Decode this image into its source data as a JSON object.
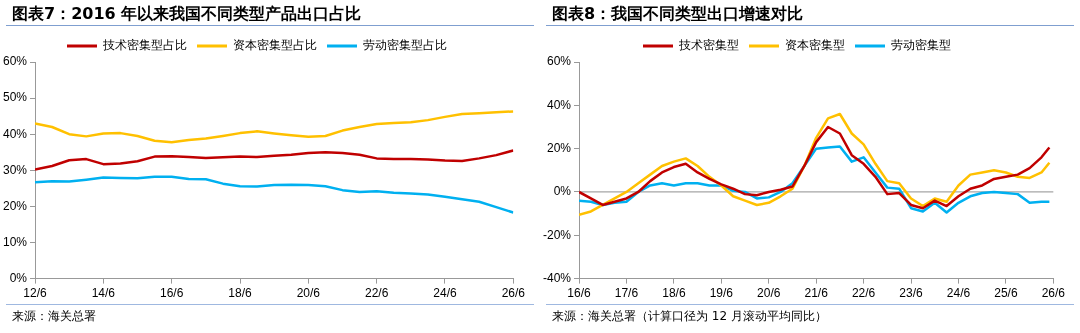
{
  "chart_data": [
    {
      "type": "line",
      "title": "图表7：2016 年以来我国不同类型产品出口占比",
      "annotations": [
        "来源：海关总署"
      ],
      "x": [
        "2012-06",
        "2012-12",
        "2013-06",
        "2013-12",
        "2014-06",
        "2014-12",
        "2015-06",
        "2015-12",
        "2016-06",
        "2016-12",
        "2017-06",
        "2017-12",
        "2018-06",
        "2018-12",
        "2019-06",
        "2019-12",
        "2020-06",
        "2020-12",
        "2021-06",
        "2021-12",
        "2022-06",
        "2022-12",
        "2023-06",
        "2023-12",
        "2024-06",
        "2024-12",
        "2025-06",
        "2025-12",
        "2026-06"
      ],
      "series": [
        {
          "name": "技术密集型占比",
          "color": "#c00000",
          "values": [
            30.2,
            31.2,
            32.8,
            33.1,
            31.7,
            31.9,
            32.5,
            33.8,
            33.9,
            33.7,
            33.4,
            33.6,
            33.8,
            33.7,
            34,
            34.3,
            34.8,
            35,
            34.8,
            34.3,
            33.3,
            33.1,
            33.1,
            33,
            32.7,
            32.6,
            33.3,
            34.2,
            35.5
          ]
        },
        {
          "name": "资本密集型占比",
          "color": "#ffc000",
          "values": [
            43,
            42,
            40,
            39.4,
            40.2,
            40.3,
            39.5,
            38.2,
            37.8,
            38.4,
            38.8,
            39.5,
            40.3,
            40.8,
            40.2,
            39.7,
            39.3,
            39.5,
            41,
            42,
            42.8,
            43.1,
            43.3,
            43.9,
            44.8,
            45.6,
            45.8,
            46.1,
            46.3
          ]
        },
        {
          "name": "劳动密集型占比",
          "color": "#00b0f0",
          "values": [
            26.7,
            27,
            26.9,
            27.4,
            28,
            27.9,
            27.8,
            28.2,
            28.2,
            27.6,
            27.5,
            26.3,
            25.6,
            25.5,
            25.9,
            26,
            25.9,
            25.6,
            24.5,
            24,
            24.2,
            23.8,
            23.6,
            23.3,
            22.7,
            22,
            21.3,
            19.8,
            18.3
          ]
        }
      ],
      "xlim": [
        "2012-06",
        "2026-06"
      ],
      "xticks": [
        {
          "value": "2012-06",
          "label": "12/6"
        },
        {
          "value": "2014-06",
          "label": "14/6"
        },
        {
          "value": "2016-06",
          "label": "16/6"
        },
        {
          "value": "2018-06",
          "label": "18/6"
        },
        {
          "value": "2020-06",
          "label": "20/6"
        },
        {
          "value": "2022-06",
          "label": "22/6"
        },
        {
          "value": "2024-06",
          "label": "24/6"
        },
        {
          "value": "2026-06",
          "label": "26/6"
        }
      ],
      "ylim": [
        0,
        60
      ],
      "yticks": [
        {
          "value": 0,
          "label": "0%"
        },
        {
          "value": 10,
          "label": "10%"
        },
        {
          "value": 20,
          "label": "20%"
        },
        {
          "value": 30,
          "label": "30%"
        },
        {
          "value": 40,
          "label": "40%"
        },
        {
          "value": 50,
          "label": "50%"
        },
        {
          "value": 60,
          "label": "60%"
        }
      ],
      "grid": false,
      "legend": "top",
      "marker": "none",
      "line_style": "solid"
    },
    {
      "type": "line",
      "title": "图表8：我国不同类型出口增速对比",
      "annotations": [
        "来源：海关总署（计算口径为 12 月滚动平均同比）"
      ],
      "x": [
        "2016-06",
        "2016-09",
        "2016-12",
        "2017-03",
        "2017-06",
        "2017-09",
        "2017-12",
        "2018-03",
        "2018-06",
        "2018-09",
        "2018-12",
        "2019-03",
        "2019-06",
        "2019-09",
        "2019-12",
        "2020-03",
        "2020-06",
        "2020-09",
        "2020-12",
        "2021-03",
        "2021-06",
        "2021-09",
        "2021-12",
        "2022-03",
        "2022-06",
        "2022-09",
        "2022-12",
        "2023-03",
        "2023-06",
        "2023-09",
        "2023-12",
        "2024-03",
        "2024-06",
        "2024-09",
        "2024-12",
        "2025-03",
        "2025-06",
        "2025-09",
        "2025-12",
        "2026-03",
        "2026-05"
      ],
      "series": [
        {
          "name": "技术密集型",
          "color": "#c00000",
          "values": [
            0,
            -3,
            -6,
            -4.5,
            -3,
            0,
            5,
            9,
            11.5,
            13,
            9,
            6,
            3.5,
            1.5,
            -1,
            -1.5,
            0,
            1,
            2.5,
            12,
            23,
            30,
            27,
            17,
            13,
            7,
            -1,
            -0.5,
            -6,
            -7.5,
            -4,
            -6.5,
            -2,
            1.5,
            3,
            6,
            7,
            8,
            11,
            16,
            20.5
          ]
        },
        {
          "name": "资本密集型",
          "color": "#ffc000",
          "values": [
            -10.5,
            -9,
            -6,
            -3,
            0,
            4,
            8,
            12,
            14,
            15.5,
            12,
            7,
            3,
            -2,
            -4,
            -6,
            -5,
            -2,
            1.5,
            12,
            25,
            34,
            36,
            27,
            22,
            13,
            5,
            4,
            -3,
            -6.5,
            -3,
            -4.5,
            3,
            8,
            9,
            10,
            9,
            7,
            6.5,
            9,
            13.5
          ]
        },
        {
          "name": "劳动密集型",
          "color": "#00b0f0",
          "values": [
            -4,
            -4.5,
            -6,
            -5,
            -4.5,
            0,
            3,
            4,
            3,
            4,
            4,
            3,
            3,
            0.5,
            0,
            -3,
            -2.5,
            0,
            4,
            12,
            20,
            20.5,
            21,
            14,
            16,
            9,
            2,
            1.5,
            -7.5,
            -9,
            -5,
            -9.5,
            -5,
            -2,
            -0.5,
            0,
            -0.5,
            -1,
            -5,
            -4.5,
            -4.5
          ]
        }
      ],
      "xlim": [
        "2016-06",
        "2026-06"
      ],
      "xticks": [
        {
          "value": "2016-06",
          "label": "16/6"
        },
        {
          "value": "2017-06",
          "label": "17/6"
        },
        {
          "value": "2018-06",
          "label": "18/6"
        },
        {
          "value": "2019-06",
          "label": "19/6"
        },
        {
          "value": "2020-06",
          "label": "20/6"
        },
        {
          "value": "2021-06",
          "label": "21/6"
        },
        {
          "value": "2022-06",
          "label": "22/6"
        },
        {
          "value": "2023-06",
          "label": "23/6"
        },
        {
          "value": "2024-06",
          "label": "24/6"
        },
        {
          "value": "2025-06",
          "label": "25/6"
        },
        {
          "value": "2026-06",
          "label": "26/6"
        }
      ],
      "ylim": [
        -40,
        60
      ],
      "yticks": [
        {
          "value": -40,
          "label": "-40%"
        },
        {
          "value": -20,
          "label": "-20%"
        },
        {
          "value": 0,
          "label": "0%"
        },
        {
          "value": 20,
          "label": "20%"
        },
        {
          "value": 40,
          "label": "40%"
        },
        {
          "value": 60,
          "label": "60%"
        }
      ],
      "ref_lines": [
        {
          "axis": "y",
          "value": 0,
          "color": "#a6a6a6"
        }
      ],
      "grid": false,
      "legend": "top",
      "marker": "none",
      "line_style": "solid"
    }
  ]
}
